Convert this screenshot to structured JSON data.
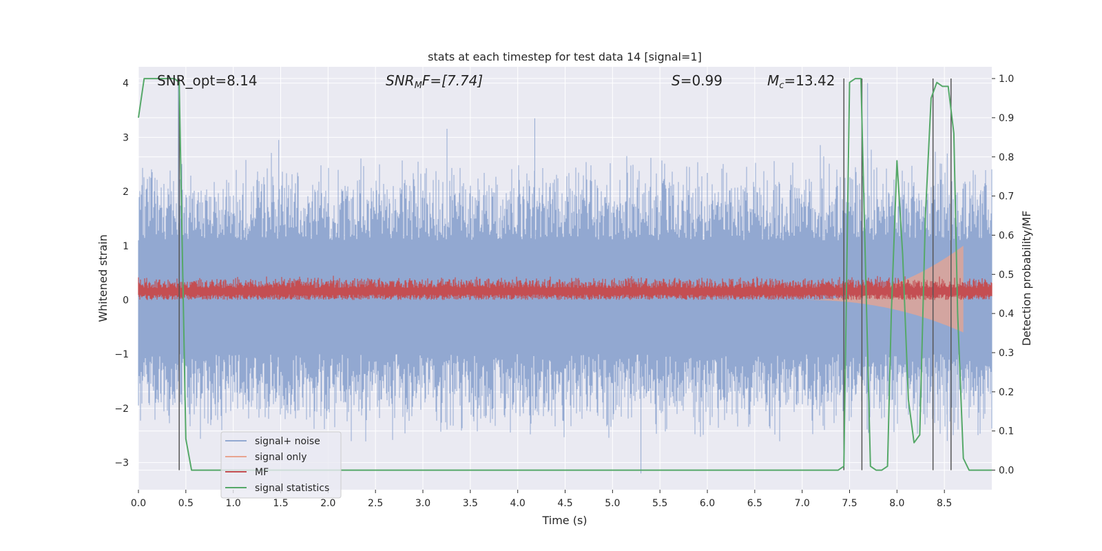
{
  "chart_data": {
    "type": "line",
    "title": "stats at each timestep for test data 14 [signal=1]",
    "xlabel": "Time (s)",
    "ylabel_left": "Whitened strain",
    "ylabel_right": "Detection probability/MF",
    "xlim": [
      0.0,
      9.0
    ],
    "ylim_left": [
      -3.5,
      4.3
    ],
    "ylim_right": [
      -0.05,
      1.03
    ],
    "x_ticks": [
      0.0,
      0.5,
      1.0,
      1.5,
      2.0,
      2.5,
      3.0,
      3.5,
      4.0,
      4.5,
      5.0,
      5.5,
      6.0,
      6.5,
      7.0,
      7.5,
      8.0,
      8.5
    ],
    "y_ticks_left": [
      4,
      3,
      2,
      1,
      0,
      -1,
      -2,
      -3
    ],
    "y_ticks_left_labels": [
      "4",
      "3",
      "2",
      "1",
      "0",
      "−1",
      "−2",
      "−3"
    ],
    "y_ticks_right": [
      1.0,
      0.9,
      0.8,
      0.7,
      0.6,
      0.5,
      0.4,
      0.3,
      0.2,
      0.1,
      0.0
    ],
    "grid": true,
    "annotations": {
      "snr_opt": "SNR_opt=8.14",
      "snr_mf_label": "SNR",
      "snr_mf_sub": "M",
      "snr_mf_rest": "F=[7.74]",
      "s_label": "S",
      "s_value": "=0.99",
      "mc_label": "M",
      "mc_sub": "c",
      "mc_value": "=13.42"
    },
    "legend": {
      "position": "lower-left",
      "entries": [
        "signal+ noise",
        "signal only",
        "MF",
        "signal statistics"
      ]
    },
    "colors": {
      "signal_noise": "#92a8d1",
      "signal_only": "#e8a48f",
      "mf": "#c44e52",
      "statistics": "#55a868",
      "detection_lines": "#555555",
      "background": "#eaeaf2",
      "grid": "#ffffff"
    },
    "detection_lines_x": [
      0.43,
      7.44,
      7.63,
      8.38,
      8.57
    ],
    "series": [
      {
        "name": "signal statistics",
        "axis": "right",
        "x": [
          0.0,
          0.06,
          0.12,
          0.2,
          0.3,
          0.38,
          0.43,
          0.46,
          0.5,
          0.56,
          0.62,
          1.0,
          2.0,
          3.0,
          4.0,
          5.0,
          6.0,
          7.0,
          7.38,
          7.44,
          7.5,
          7.56,
          7.62,
          7.66,
          7.72,
          7.78,
          7.84,
          7.9,
          7.94,
          8.0,
          8.06,
          8.12,
          8.18,
          8.24,
          8.3,
          8.36,
          8.42,
          8.48,
          8.54,
          8.6,
          8.64,
          8.7,
          8.76,
          8.82,
          9.0
        ],
        "values": [
          0.9,
          1.0,
          1.0,
          1.0,
          1.0,
          1.0,
          0.99,
          0.6,
          0.08,
          0.0,
          0.0,
          0.0,
          0.0,
          0.0,
          0.0,
          0.0,
          0.0,
          0.0,
          0.0,
          0.01,
          0.99,
          1.0,
          1.0,
          0.6,
          0.01,
          0.0,
          0.0,
          0.01,
          0.4,
          0.79,
          0.55,
          0.18,
          0.07,
          0.09,
          0.65,
          0.95,
          0.99,
          0.98,
          0.98,
          0.86,
          0.4,
          0.03,
          0.0,
          0.0,
          0.0
        ]
      }
    ],
    "noise_envelope": {
      "band_low": -1.0,
      "band_high": 1.1,
      "typical_peak_low": -2.2,
      "typical_peak_high": 2.3,
      "max_spike": 4.0,
      "min_spike": -3.2
    },
    "mf_band": {
      "low": 0.0,
      "high": 0.45
    },
    "signal_chirp": {
      "start_x": 7.0,
      "end_x": 8.7,
      "max_amp": 1.0
    }
  }
}
